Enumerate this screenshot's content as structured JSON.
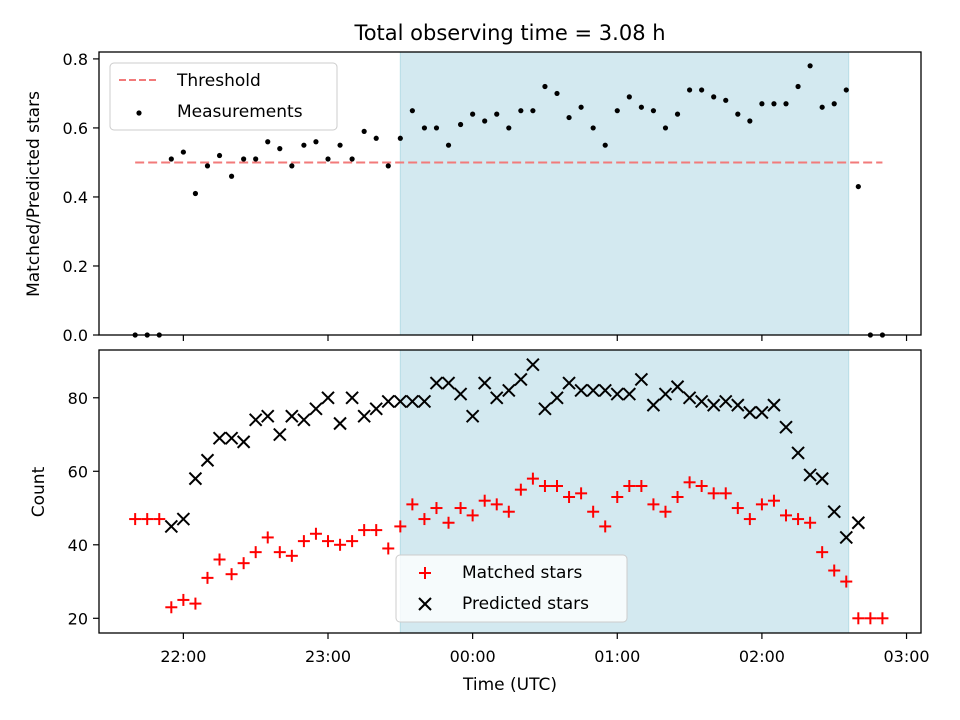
{
  "chart_data": [
    {
      "type": "scatter",
      "title": "Total observing time = 3.08 h",
      "ylabel": "Matched/Predicted stars",
      "ylim": [
        0,
        0.82
      ],
      "yticks": [
        "0.0",
        "0.2",
        "0.4",
        "0.6",
        "0.8"
      ],
      "ytick_values": [
        0,
        0.2,
        0.4,
        0.6,
        0.8
      ],
      "shaded_span": [
        "23:30",
        "02:36"
      ],
      "shade_color": "#d3e9f0",
      "threshold": {
        "name": "Threshold",
        "value": 0.5,
        "x_start": "21:40",
        "x_end": "02:50",
        "color": "#f27a7a"
      },
      "series": [
        {
          "name": "Measurements",
          "marker": "dot",
          "color": "#000000",
          "points": [
            [
              "21:40",
              0.0
            ],
            [
              "21:45",
              0.0
            ],
            [
              "21:50",
              0.0
            ],
            [
              "21:55",
              0.51
            ],
            [
              "22:00",
              0.53
            ],
            [
              "22:05",
              0.41
            ],
            [
              "22:10",
              0.49
            ],
            [
              "22:15",
              0.52
            ],
            [
              "22:20",
              0.46
            ],
            [
              "22:25",
              0.51
            ],
            [
              "22:30",
              0.51
            ],
            [
              "22:35",
              0.56
            ],
            [
              "22:40",
              0.54
            ],
            [
              "22:45",
              0.49
            ],
            [
              "22:50",
              0.55
            ],
            [
              "22:55",
              0.56
            ],
            [
              "23:00",
              0.51
            ],
            [
              "23:05",
              0.55
            ],
            [
              "23:10",
              0.51
            ],
            [
              "23:15",
              0.59
            ],
            [
              "23:20",
              0.57
            ],
            [
              "23:25",
              0.49
            ],
            [
              "23:30",
              0.57
            ],
            [
              "23:35",
              0.65
            ],
            [
              "23:40",
              0.6
            ],
            [
              "23:45",
              0.6
            ],
            [
              "23:50",
              0.55
            ],
            [
              "23:55",
              0.61
            ],
            [
              "00:00",
              0.64
            ],
            [
              "00:05",
              0.62
            ],
            [
              "00:10",
              0.64
            ],
            [
              "00:15",
              0.6
            ],
            [
              "00:20",
              0.65
            ],
            [
              "00:25",
              0.65
            ],
            [
              "00:30",
              0.72
            ],
            [
              "00:35",
              0.7
            ],
            [
              "00:40",
              0.63
            ],
            [
              "00:45",
              0.66
            ],
            [
              "00:50",
              0.6
            ],
            [
              "00:55",
              0.55
            ],
            [
              "01:00",
              0.65
            ],
            [
              "01:05",
              0.69
            ],
            [
              "01:10",
              0.66
            ],
            [
              "01:15",
              0.65
            ],
            [
              "01:20",
              0.6
            ],
            [
              "01:25",
              0.64
            ],
            [
              "01:30",
              0.71
            ],
            [
              "01:35",
              0.71
            ],
            [
              "01:40",
              0.69
            ],
            [
              "01:45",
              0.68
            ],
            [
              "01:50",
              0.64
            ],
            [
              "01:55",
              0.62
            ],
            [
              "02:00",
              0.67
            ],
            [
              "02:05",
              0.67
            ],
            [
              "02:10",
              0.67
            ],
            [
              "02:15",
              0.72
            ],
            [
              "02:20",
              0.78
            ],
            [
              "02:25",
              0.66
            ],
            [
              "02:30",
              0.67
            ],
            [
              "02:35",
              0.71
            ],
            [
              "02:40",
              0.43
            ],
            [
              "02:45",
              0.0
            ],
            [
              "02:50",
              0.0
            ]
          ]
        }
      ]
    },
    {
      "type": "scatter",
      "xlabel": "Time (UTC)",
      "ylabel": "Count",
      "ylim": [
        16,
        93
      ],
      "yticks": [
        "20",
        "40",
        "60",
        "80"
      ],
      "ytick_values": [
        20,
        40,
        60,
        80
      ],
      "xlim": [
        "21:25",
        "03:06"
      ],
      "xticks": [
        "22:00",
        "23:00",
        "00:00",
        "01:00",
        "02:00",
        "03:00"
      ],
      "shaded_span": [
        "23:30",
        "02:36"
      ],
      "shade_color": "#d3e9f0",
      "series": [
        {
          "name": "Matched stars",
          "marker": "plus",
          "color": "#ff0000",
          "points": [
            [
              "21:40",
              47
            ],
            [
              "21:45",
              47
            ],
            [
              "21:50",
              47
            ],
            [
              "21:55",
              23
            ],
            [
              "22:00",
              25
            ],
            [
              "22:05",
              24
            ],
            [
              "22:10",
              31
            ],
            [
              "22:15",
              36
            ],
            [
              "22:20",
              32
            ],
            [
              "22:25",
              35
            ],
            [
              "22:30",
              38
            ],
            [
              "22:35",
              42
            ],
            [
              "22:40",
              38
            ],
            [
              "22:45",
              37
            ],
            [
              "22:50",
              41
            ],
            [
              "22:55",
              43
            ],
            [
              "23:00",
              41
            ],
            [
              "23:05",
              40
            ],
            [
              "23:10",
              41
            ],
            [
              "23:15",
              44
            ],
            [
              "23:20",
              44
            ],
            [
              "23:25",
              39
            ],
            [
              "23:30",
              45
            ],
            [
              "23:35",
              51
            ],
            [
              "23:40",
              47
            ],
            [
              "23:45",
              50
            ],
            [
              "23:50",
              46
            ],
            [
              "23:55",
              50
            ],
            [
              "00:00",
              48
            ],
            [
              "00:05",
              52
            ],
            [
              "00:10",
              51
            ],
            [
              "00:15",
              49
            ],
            [
              "00:20",
              55
            ],
            [
              "00:25",
              58
            ],
            [
              "00:30",
              56
            ],
            [
              "00:35",
              56
            ],
            [
              "00:40",
              53
            ],
            [
              "00:45",
              54
            ],
            [
              "00:50",
              49
            ],
            [
              "00:55",
              45
            ],
            [
              "01:00",
              53
            ],
            [
              "01:05",
              56
            ],
            [
              "01:10",
              56
            ],
            [
              "01:15",
              51
            ],
            [
              "01:20",
              49
            ],
            [
              "01:25",
              53
            ],
            [
              "01:30",
              57
            ],
            [
              "01:35",
              56
            ],
            [
              "01:40",
              54
            ],
            [
              "01:45",
              54
            ],
            [
              "01:50",
              50
            ],
            [
              "01:55",
              47
            ],
            [
              "02:00",
              51
            ],
            [
              "02:05",
              52
            ],
            [
              "02:10",
              48
            ],
            [
              "02:15",
              47
            ],
            [
              "02:20",
              46
            ],
            [
              "02:25",
              38
            ],
            [
              "02:30",
              33
            ],
            [
              "02:35",
              30
            ],
            [
              "02:40",
              20
            ],
            [
              "02:45",
              20
            ],
            [
              "02:50",
              20
            ]
          ]
        },
        {
          "name": "Predicted stars",
          "marker": "x",
          "color": "#000000",
          "points": [
            [
              "21:55",
              45
            ],
            [
              "22:00",
              47
            ],
            [
              "22:05",
              58
            ],
            [
              "22:10",
              63
            ],
            [
              "22:15",
              69
            ],
            [
              "22:20",
              69
            ],
            [
              "22:25",
              68
            ],
            [
              "22:30",
              74
            ],
            [
              "22:35",
              75
            ],
            [
              "22:40",
              70
            ],
            [
              "22:45",
              75
            ],
            [
              "22:50",
              74
            ],
            [
              "22:55",
              77
            ],
            [
              "23:00",
              80
            ],
            [
              "23:05",
              73
            ],
            [
              "23:10",
              80
            ],
            [
              "23:15",
              75
            ],
            [
              "23:20",
              77
            ],
            [
              "23:25",
              79
            ],
            [
              "23:30",
              79
            ],
            [
              "23:35",
              79
            ],
            [
              "23:40",
              79
            ],
            [
              "23:45",
              84
            ],
            [
              "23:50",
              84
            ],
            [
              "23:55",
              81
            ],
            [
              "00:00",
              75
            ],
            [
              "00:05",
              84
            ],
            [
              "00:10",
              80
            ],
            [
              "00:15",
              82
            ],
            [
              "00:20",
              85
            ],
            [
              "00:25",
              89
            ],
            [
              "00:30",
              77
            ],
            [
              "00:35",
              80
            ],
            [
              "00:40",
              84
            ],
            [
              "00:45",
              82
            ],
            [
              "00:50",
              82
            ],
            [
              "00:55",
              82
            ],
            [
              "01:00",
              81
            ],
            [
              "01:05",
              81
            ],
            [
              "01:10",
              85
            ],
            [
              "01:15",
              78
            ],
            [
              "01:20",
              81
            ],
            [
              "01:25",
              83
            ],
            [
              "01:30",
              80
            ],
            [
              "01:35",
              79
            ],
            [
              "01:40",
              78
            ],
            [
              "01:45",
              79
            ],
            [
              "01:50",
              78
            ],
            [
              "01:55",
              76
            ],
            [
              "02:00",
              76
            ],
            [
              "02:05",
              78
            ],
            [
              "02:10",
              72
            ],
            [
              "02:15",
              65
            ],
            [
              "02:20",
              59
            ],
            [
              "02:25",
              58
            ],
            [
              "02:30",
              49
            ],
            [
              "02:35",
              42
            ],
            [
              "02:40",
              46
            ]
          ]
        }
      ]
    }
  ],
  "legends": {
    "top": {
      "placement": "top-left",
      "items": [
        "Threshold",
        "Measurements"
      ]
    },
    "bottom": {
      "placement": "bottom-center",
      "items": [
        "Matched stars",
        "Predicted stars"
      ]
    }
  }
}
